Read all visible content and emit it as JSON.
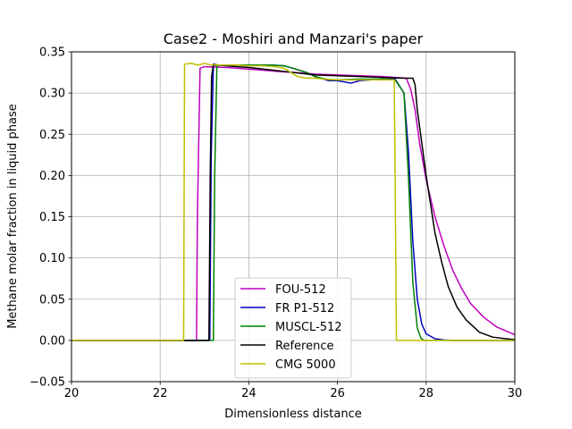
{
  "chart_data": {
    "type": "line",
    "title": "Case2 - Moshiri and Manzari's paper",
    "xlabel": "Dimensionless distance",
    "ylabel": "Methane molar fraction in liquid phase",
    "xlim": [
      20,
      30
    ],
    "ylim": [
      -0.05,
      0.35
    ],
    "xticks": [
      20,
      22,
      24,
      26,
      28,
      30
    ],
    "xtick_labels": [
      "20",
      "22",
      "24",
      "26",
      "28",
      "30"
    ],
    "yticks": [
      -0.05,
      0.0,
      0.05,
      0.1,
      0.15,
      0.2,
      0.25,
      0.3,
      0.35
    ],
    "ytick_labels": [
      "−0.05",
      "0.00",
      "0.05",
      "0.10",
      "0.15",
      "0.20",
      "0.25",
      "0.30",
      "0.35"
    ],
    "grid": true,
    "legend_position": "lower-center",
    "series": [
      {
        "name": "FOU-512",
        "color": "#bf00bf",
        "x": [
          20.0,
          22.82,
          22.84,
          22.9,
          23.0,
          23.5,
          24.0,
          24.5,
          24.7,
          25.0,
          25.5,
          26.0,
          26.5,
          27.0,
          27.3,
          27.55,
          27.65,
          27.75,
          27.85,
          28.0,
          28.2,
          28.4,
          28.6,
          28.8,
          29.0,
          29.3,
          29.6,
          30.0
        ],
        "y": [
          0.0,
          0.0,
          0.15,
          0.33,
          0.332,
          0.331,
          0.329,
          0.327,
          0.326,
          0.325,
          0.323,
          0.322,
          0.321,
          0.32,
          0.319,
          0.318,
          0.305,
          0.28,
          0.24,
          0.195,
          0.15,
          0.115,
          0.085,
          0.063,
          0.045,
          0.028,
          0.016,
          0.007
        ]
      },
      {
        "name": "FR P1-512",
        "color": "#0000bf",
        "x": [
          20.0,
          23.12,
          23.15,
          23.2,
          23.3,
          23.5,
          24.0,
          24.5,
          24.8,
          25.0,
          25.3,
          25.5,
          25.8,
          26.0,
          26.3,
          26.5,
          27.0,
          27.3,
          27.5,
          27.6,
          27.7,
          27.8,
          27.9,
          28.0,
          28.2,
          28.4,
          28.6,
          29.0,
          30.0
        ],
        "y": [
          0.0,
          0.0,
          0.22,
          0.333,
          0.334,
          0.334,
          0.334,
          0.334,
          0.333,
          0.33,
          0.325,
          0.32,
          0.315,
          0.315,
          0.312,
          0.315,
          0.317,
          0.317,
          0.3,
          0.23,
          0.12,
          0.05,
          0.02,
          0.008,
          0.002,
          0.0005,
          0.0,
          0.0,
          0.0
        ]
      },
      {
        "name": "MUSCL-512",
        "color": "#008000",
        "x": [
          20.0,
          23.2,
          23.23,
          23.28,
          23.4,
          23.6,
          24.0,
          24.5,
          24.8,
          25.0,
          25.3,
          25.5,
          25.8,
          26.0,
          26.5,
          27.0,
          27.3,
          27.5,
          27.6,
          27.7,
          27.8,
          27.88,
          27.95,
          30.0
        ],
        "y": [
          0.0,
          0.0,
          0.2,
          0.333,
          0.334,
          0.334,
          0.334,
          0.334,
          0.333,
          0.33,
          0.325,
          0.32,
          0.316,
          0.316,
          0.317,
          0.317,
          0.316,
          0.3,
          0.2,
          0.07,
          0.015,
          0.003,
          0.0,
          0.0
        ]
      },
      {
        "name": "Reference",
        "color": "#000000",
        "x": [
          20.0,
          22.55,
          23.1,
          23.13,
          23.16,
          23.2,
          23.3,
          23.5,
          24.0,
          24.5,
          25.0,
          25.5,
          26.0,
          26.5,
          27.0,
          27.5,
          27.7,
          27.75,
          27.8,
          27.9,
          28.0,
          28.1,
          28.2,
          28.35,
          28.5,
          28.7,
          28.9,
          29.2,
          29.5,
          29.8,
          30.0
        ],
        "y": [
          0.0,
          0.0,
          0.0,
          0.2,
          0.32,
          0.335,
          0.334,
          0.333,
          0.331,
          0.328,
          0.325,
          0.322,
          0.321,
          0.32,
          0.319,
          0.318,
          0.318,
          0.31,
          0.28,
          0.24,
          0.2,
          0.165,
          0.13,
          0.095,
          0.065,
          0.04,
          0.025,
          0.01,
          0.004,
          0.002,
          0.001
        ]
      },
      {
        "name": "CMG 5000",
        "color": "#bfbf00",
        "x": [
          20.0,
          22.53,
          22.55,
          22.7,
          22.85,
          23.0,
          23.15,
          23.4,
          23.7,
          24.0,
          24.3,
          24.6,
          24.8,
          24.95,
          25.1,
          25.3,
          25.5,
          25.7,
          26.0,
          26.5,
          27.0,
          27.28,
          27.3,
          27.33,
          30.0
        ],
        "y": [
          0.0,
          0.0,
          0.335,
          0.336,
          0.334,
          0.336,
          0.334,
          0.334,
          0.334,
          0.333,
          0.333,
          0.332,
          0.33,
          0.325,
          0.32,
          0.318,
          0.318,
          0.317,
          0.316,
          0.316,
          0.316,
          0.316,
          0.2,
          0.0,
          0.0
        ]
      }
    ]
  }
}
